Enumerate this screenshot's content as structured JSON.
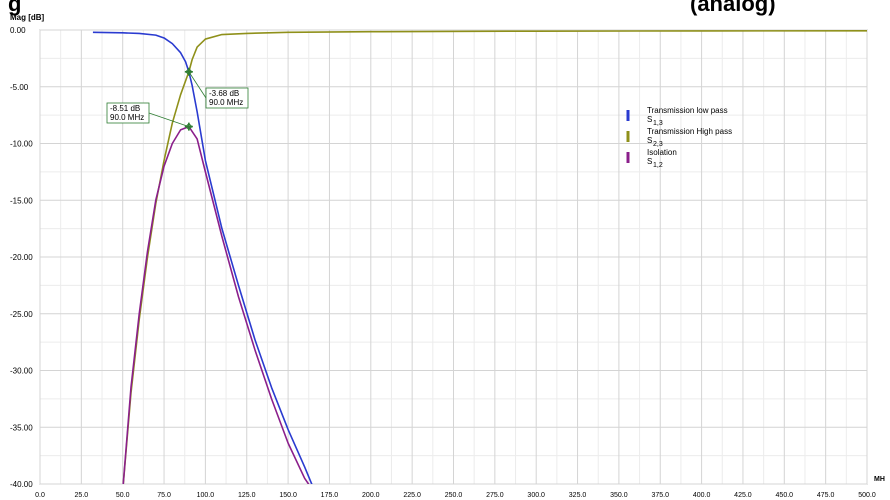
{
  "title": "g",
  "title_right": "(analog)",
  "chart_data": {
    "type": "line",
    "ylabel": "Mag [dB]",
    "xunit": "MH",
    "xlim": [
      0,
      500
    ],
    "ylim": [
      -40,
      0
    ],
    "x_ticks": [
      0,
      25,
      50,
      75,
      100,
      125,
      150,
      175,
      200,
      225,
      250,
      275,
      300,
      325,
      350,
      375,
      400,
      425,
      450,
      475,
      500
    ],
    "x_tick_labels": [
      "0.0",
      "25.0",
      "50.0",
      "75.0",
      "100.0",
      "125.0",
      "150.0",
      "175.0",
      "200.0",
      "225.0",
      "250.0",
      "275.0",
      "300.0",
      "325.0",
      "350.0",
      "375.0",
      "400.0",
      "425.0",
      "450.0",
      "475.0",
      "500.0"
    ],
    "y_ticks": [
      0,
      -5,
      -10,
      -15,
      -20,
      -25,
      -30,
      -35,
      -40
    ],
    "y_tick_labels": [
      "0.00",
      "-5.00",
      "-10.00",
      "-15.00",
      "-20.00",
      "-25.00",
      "-30.00",
      "-35.00",
      "-40.00"
    ],
    "grid": true,
    "legend_position": "right",
    "series": [
      {
        "name": "Transmission low pass",
        "param": "S",
        "sub": "1,3",
        "color": "#2a3bd0",
        "points": [
          [
            32,
            -0.2
          ],
          [
            50,
            -0.25
          ],
          [
            60,
            -0.3
          ],
          [
            70,
            -0.45
          ],
          [
            75,
            -0.7
          ],
          [
            80,
            -1.2
          ],
          [
            85,
            -2.0
          ],
          [
            88,
            -2.8
          ],
          [
            90,
            -3.68
          ],
          [
            92,
            -4.9
          ],
          [
            95,
            -7.2
          ],
          [
            100,
            -11.5
          ],
          [
            110,
            -17.5
          ],
          [
            120,
            -22.5
          ],
          [
            130,
            -27.3
          ],
          [
            140,
            -31.5
          ],
          [
            150,
            -35.2
          ],
          [
            160,
            -38.5
          ],
          [
            166,
            -40.6
          ]
        ]
      },
      {
        "name": "Transmission High pass",
        "param": "S",
        "sub": "2,3",
        "color": "#8f901a",
        "points": [
          [
            50,
            -40.6
          ],
          [
            55,
            -32
          ],
          [
            60,
            -25.5
          ],
          [
            65,
            -20
          ],
          [
            70,
            -15.3
          ],
          [
            75,
            -11.5
          ],
          [
            80,
            -8.2
          ],
          [
            85,
            -5.7
          ],
          [
            90,
            -3.68
          ],
          [
            92,
            -2.6
          ],
          [
            95,
            -1.5
          ],
          [
            100,
            -0.8
          ],
          [
            110,
            -0.4
          ],
          [
            125,
            -0.3
          ],
          [
            150,
            -0.2
          ],
          [
            200,
            -0.15
          ],
          [
            300,
            -0.1
          ],
          [
            400,
            -0.08
          ],
          [
            500,
            -0.07
          ]
        ]
      },
      {
        "name": "Isolation",
        "param": "S",
        "sub": "1,2",
        "color": "#8b1f8b",
        "points": [
          [
            50,
            -40.6
          ],
          [
            55,
            -31.5
          ],
          [
            60,
            -25
          ],
          [
            65,
            -19.5
          ],
          [
            70,
            -15
          ],
          [
            75,
            -12
          ],
          [
            80,
            -10
          ],
          [
            85,
            -8.8
          ],
          [
            90,
            -8.51
          ],
          [
            95,
            -9.6
          ],
          [
            100,
            -12.5
          ],
          [
            110,
            -18.2
          ],
          [
            120,
            -23.5
          ],
          [
            130,
            -28.2
          ],
          [
            140,
            -32.5
          ],
          [
            150,
            -36.4
          ],
          [
            160,
            -39.5
          ],
          [
            168,
            -41.2
          ]
        ]
      }
    ],
    "markers": [
      {
        "x": 90,
        "y": -3.68,
        "label_db": "-3.68 dB",
        "label_mhz": "90.0 MHz",
        "color": "#2e7d32"
      },
      {
        "x": 90,
        "y": -8.51,
        "label_db": "-8.51 dB",
        "label_mhz": "90.0 MHz",
        "color": "#2e7d32"
      }
    ]
  }
}
